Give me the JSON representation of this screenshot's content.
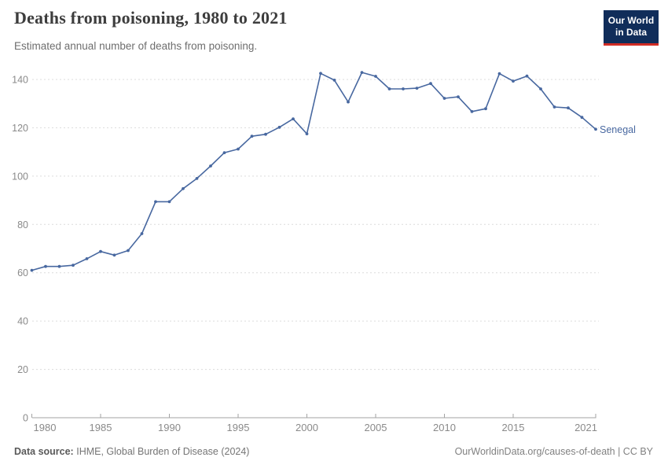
{
  "header": {
    "title": "Deaths from poisoning, 1980 to 2021",
    "subtitle": "Estimated annual number of deaths from poisoning.",
    "logo": {
      "line1": "Our World",
      "line2": "in Data"
    }
  },
  "colors": {
    "line": "#4868A0",
    "entity_label": "#4868A0",
    "title": "#3d3d3d",
    "subtitle": "#6e6e6e",
    "tick_label": "#8a8a8a",
    "grid": "#dcdcdc",
    "axis": "#a3a3a3",
    "logo_bg": "#102D5A",
    "logo_red": "#D12C24"
  },
  "chart_data": {
    "type": "line",
    "title": "Deaths from poisoning, 1980 to 2021",
    "subtitle": "Estimated annual number of deaths from poisoning.",
    "xlabel": "",
    "ylabel": "",
    "ylim": [
      0,
      145
    ],
    "yticks": [
      0,
      20,
      40,
      60,
      80,
      100,
      120,
      140
    ],
    "xticks": [
      1980,
      1985,
      1990,
      1995,
      2000,
      2005,
      2010,
      2015,
      2021
    ],
    "grid": "horizontal-dashed",
    "legend_position": "end-of-line-label",
    "x": [
      1980,
      1981,
      1982,
      1983,
      1984,
      1985,
      1986,
      1987,
      1988,
      1989,
      1990,
      1991,
      1992,
      1993,
      1994,
      1995,
      1996,
      1997,
      1998,
      1999,
      2000,
      2001,
      2002,
      2003,
      2004,
      2005,
      2006,
      2007,
      2008,
      2009,
      2010,
      2011,
      2012,
      2013,
      2014,
      2015,
      2016,
      2017,
      2018,
      2019,
      2020,
      2021
    ],
    "series": [
      {
        "name": "Senegal",
        "values": [
          61.0,
          62.6,
          62.6,
          63.1,
          65.8,
          68.8,
          67.3,
          69.2,
          76.2,
          89.4,
          89.4,
          94.8,
          99.0,
          104.2,
          109.7,
          111.2,
          116.5,
          117.3,
          120.2,
          123.7,
          117.5,
          142.5,
          139.7,
          130.7,
          142.9,
          141.3,
          136.1,
          136.1,
          136.4,
          138.3,
          132.2,
          132.8,
          126.7,
          127.9,
          142.4,
          139.3,
          141.4,
          136.1,
          128.6,
          128.2,
          124.3,
          119.4
        ]
      }
    ]
  },
  "footer": {
    "source_label": "Data source:",
    "source_value": "IHME, Global Burden of Disease (2024)",
    "credit": "OurWorldinData.org/causes-of-death | CC BY"
  }
}
